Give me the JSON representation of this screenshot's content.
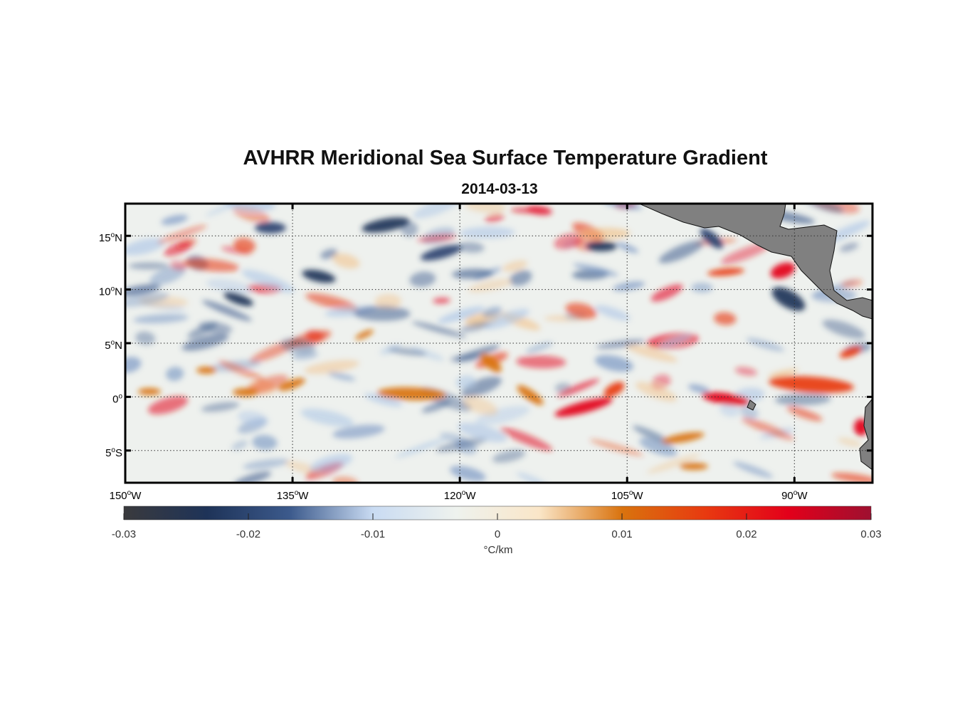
{
  "title": "AVHRR Meridional Sea Surface Temperature Gradient",
  "subtitle": "2014-03-13",
  "map": {
    "lon_range": [
      -150,
      -83
    ],
    "lat_range": [
      -8,
      18
    ],
    "lat_ticks": [
      {
        "value": 15,
        "label": "15°N"
      },
      {
        "value": 10,
        "label": "10°N"
      },
      {
        "value": 5,
        "label": "5°N"
      },
      {
        "value": 0,
        "label": "0°"
      },
      {
        "value": -5,
        "label": "5°S"
      }
    ],
    "lon_ticks": [
      {
        "value": -150,
        "label": "150°W"
      },
      {
        "value": -135,
        "label": "135°W"
      },
      {
        "value": -120,
        "label": "120°W"
      },
      {
        "value": -105,
        "label": "105°W"
      },
      {
        "value": -90,
        "label": "90°W"
      }
    ],
    "gridlines": "dotted",
    "land_color": "#808080",
    "field": "meridional SST gradient"
  },
  "colorbar": {
    "range": [
      -0.03,
      0.03
    ],
    "ticks": [
      "-0.03",
      "-0.02",
      "-0.01",
      "0",
      "0.01",
      "0.02",
      "0.03"
    ],
    "unit": "°C/km",
    "colors": [
      "#3a3a3d",
      "#1e3358",
      "#3c5a8c",
      "#c9dbf2",
      "#eef2ee",
      "#fae6c8",
      "#d9730e",
      "#e83a10",
      "#e3001a",
      "#9e1030"
    ]
  }
}
